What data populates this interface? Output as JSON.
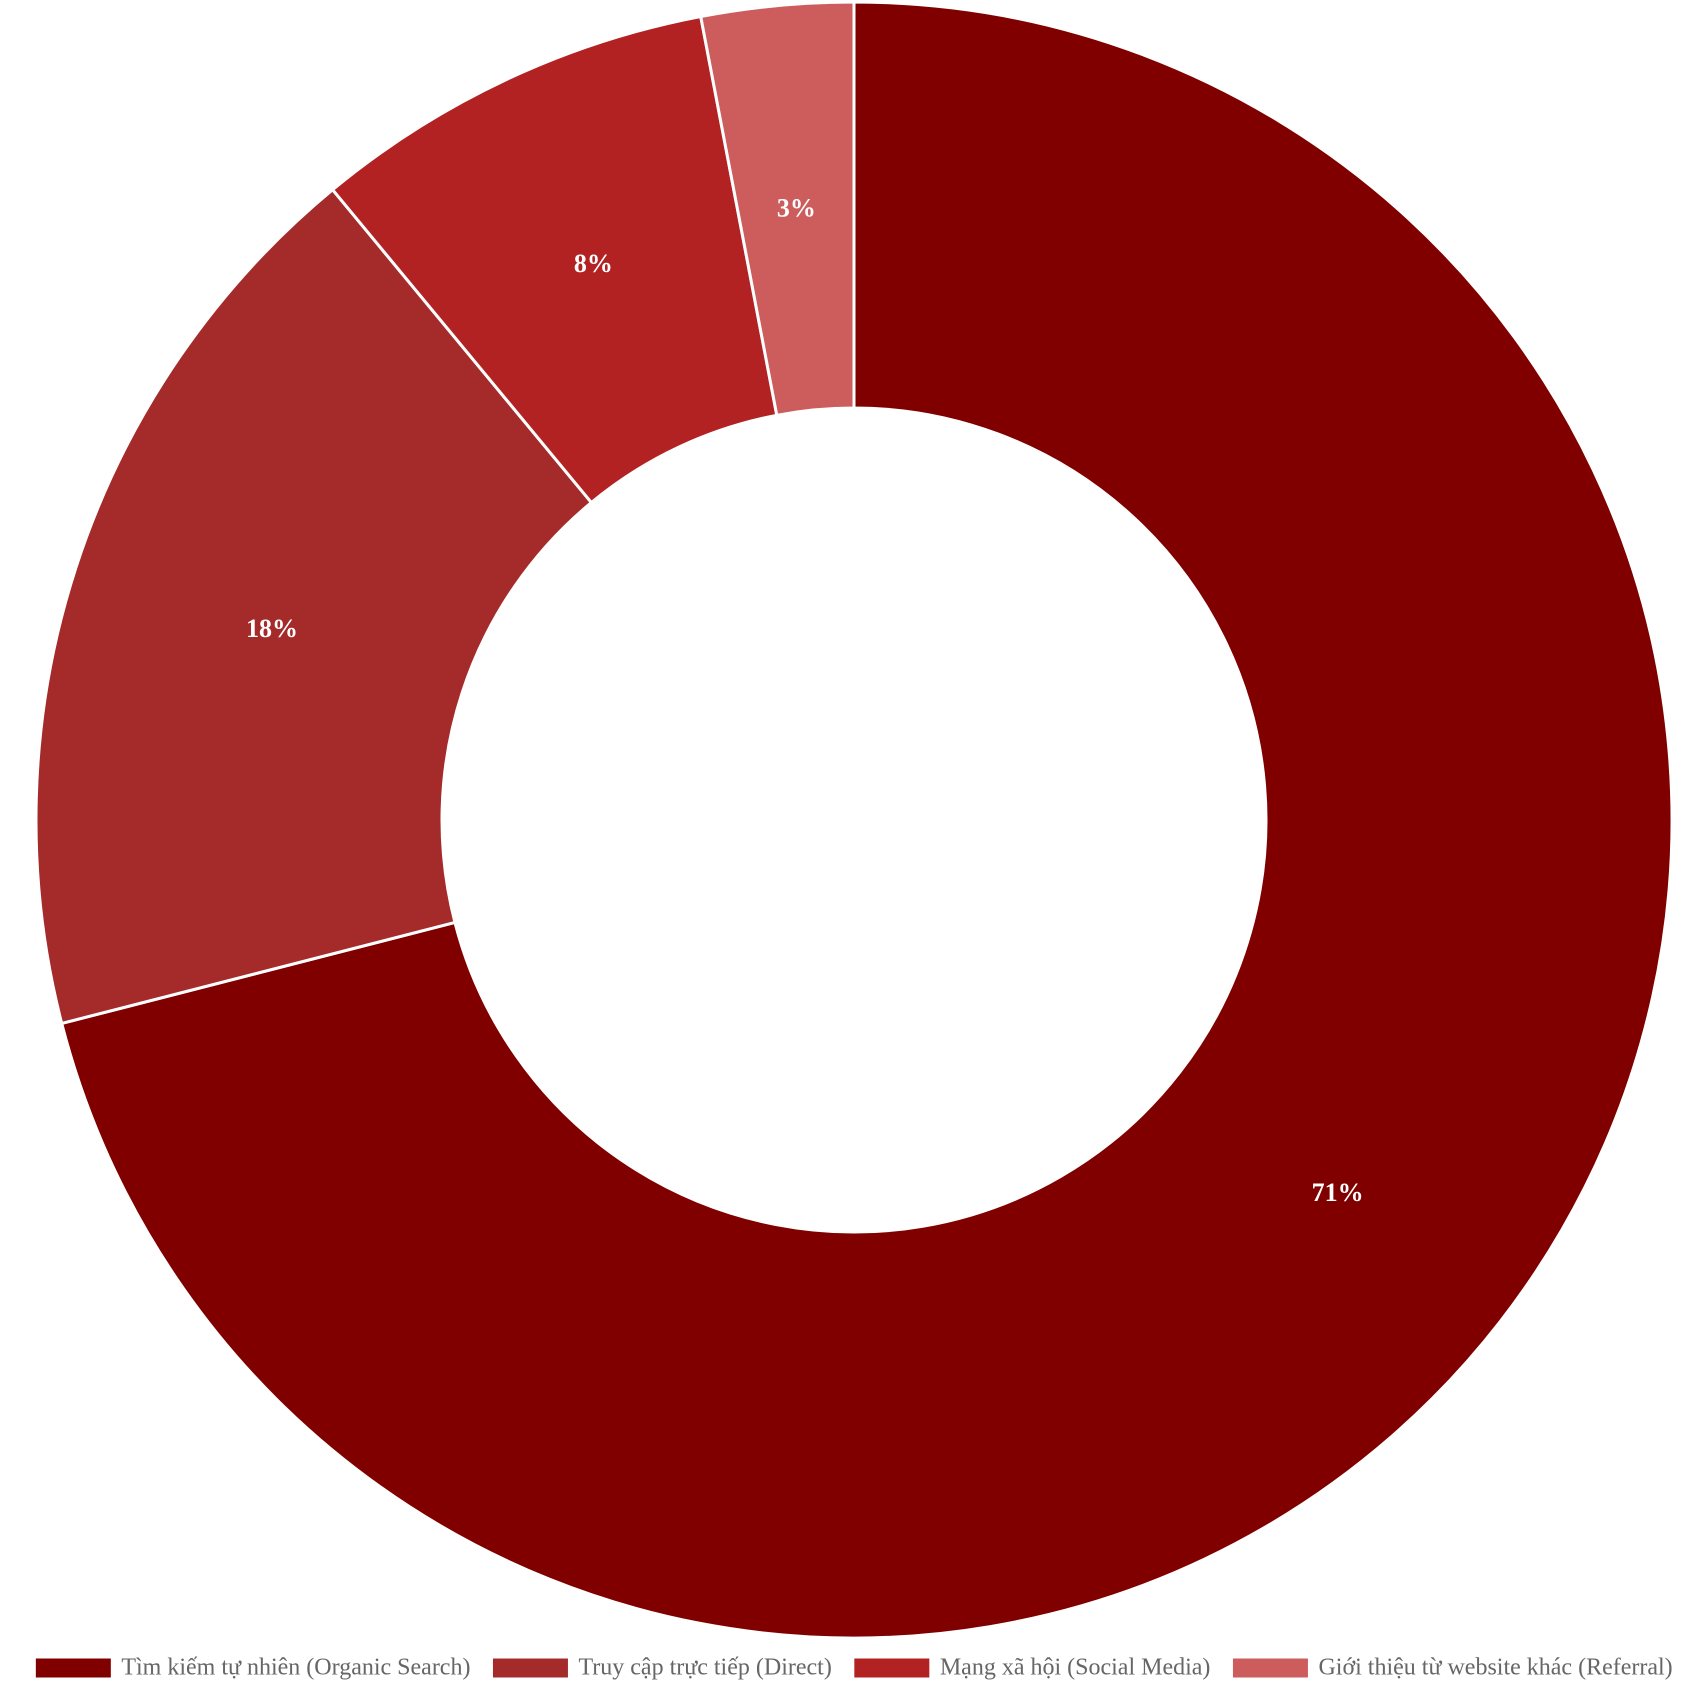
{
  "chart_data": {
    "type": "pie",
    "donut": true,
    "start_angle_deg": 0,
    "direction": "clockwise",
    "label_format": "percent",
    "legend_position": "bottom",
    "slices": [
      {
        "label": "Tìm kiếm tự nhiên (Organic Search)",
        "value": 71,
        "color": "#800000",
        "display": "71%"
      },
      {
        "label": "Truy cập trực tiếp (Direct)",
        "value": 18,
        "color": "#A52A2A",
        "display": "18%"
      },
      {
        "label": "Mạng xã hội (Social Media)",
        "value": 8,
        "color": "#B22222",
        "display": "8%"
      },
      {
        "label": "Giới thiệu từ website khác (Referral)",
        "value": 3,
        "color": "#CD5C5C",
        "display": "3%"
      }
    ],
    "slice_border_color": "#ffffff",
    "label_color": "#ffffff",
    "legend_text_color": "#666666"
  }
}
